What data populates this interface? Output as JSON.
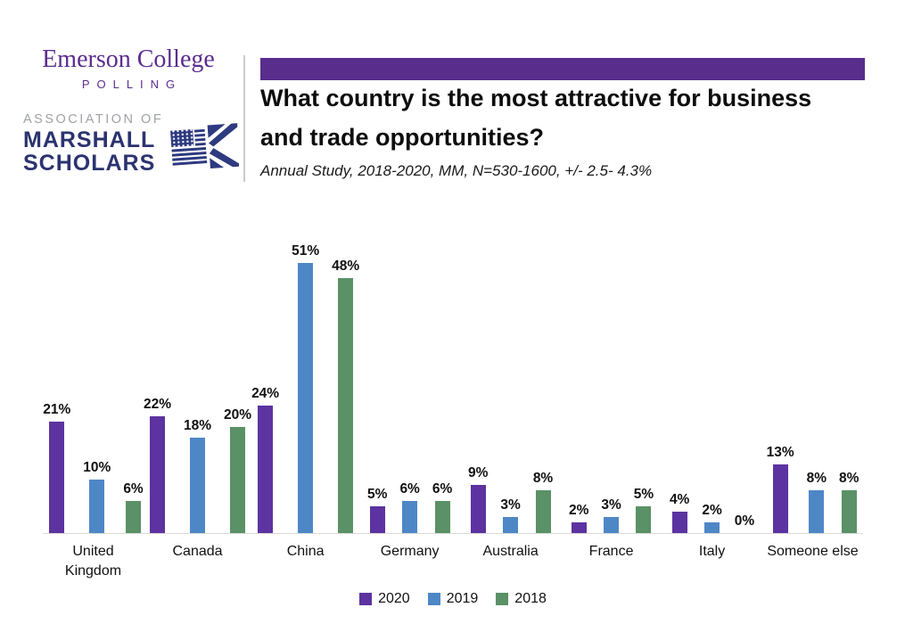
{
  "header": {
    "logo": {
      "college": "Emerson College",
      "polling": "POLLING",
      "association": "ASSOCIATION OF",
      "marshall": "MARSHALL",
      "scholars": "SCHOLARS",
      "icon": "us-uk-flag"
    },
    "title_line1": "What country is the most attractive for business",
    "title_line2": "and trade opportunities?",
    "subtitle": "Annual Study, 2018-2020,  MM, N=530-1600, +/- 2.5- 4.3%"
  },
  "colors": {
    "accent_purple": "#582D8C",
    "emerson_purple": "#5B2D90",
    "logo_navy": "#2B336F",
    "logo_gray": "#9FA2A6",
    "flag_navy": "#2E3A80",
    "bar_2020": "#5C33A0",
    "bar_2019": "#4E87C6",
    "bar_2018": "#5A9166",
    "axis_line": "#D9D9D9"
  },
  "chart_data": {
    "type": "bar",
    "title": "What country is the most attractive for business and trade opportunities?",
    "xlabel": "",
    "ylabel": "",
    "value_suffix": "%",
    "ylim": [
      0,
      55
    ],
    "grid": false,
    "legend_position": "bottom",
    "categories": [
      "United Kingdom",
      "Canada",
      "China",
      "Germany",
      "Australia",
      "France",
      "Italy",
      "Someone else"
    ],
    "category_lines": [
      [
        "United",
        "Kingdom"
      ],
      [
        "Canada"
      ],
      [
        "China"
      ],
      [
        "Germany"
      ],
      [
        "Australia"
      ],
      [
        "France"
      ],
      [
        "Italy"
      ],
      [
        "Someone else"
      ]
    ],
    "series": [
      {
        "name": "2020",
        "color": "#5C33A0",
        "values": [
          21,
          22,
          24,
          5,
          9,
          2,
          4,
          13
        ]
      },
      {
        "name": "2019",
        "color": "#4E87C6",
        "values": [
          10,
          18,
          51,
          6,
          3,
          3,
          2,
          8
        ]
      },
      {
        "name": "2018",
        "color": "#5A9166",
        "values": [
          6,
          20,
          48,
          6,
          8,
          5,
          0,
          8
        ]
      }
    ]
  }
}
